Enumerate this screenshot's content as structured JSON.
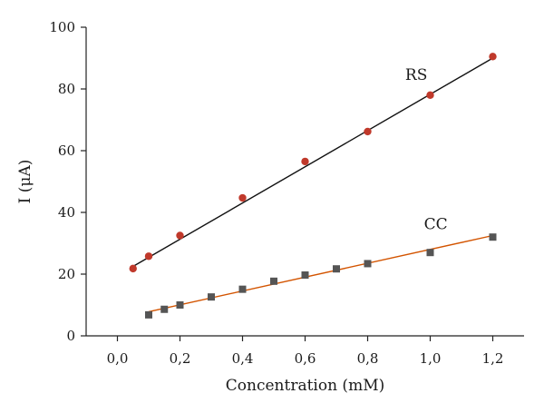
{
  "chart_data": {
    "type": "scatter",
    "xlabel": "Concentration (mM)",
    "ylabel": "I (μA)",
    "xlim": [
      -0.1,
      1.3
    ],
    "ylim": [
      0,
      100
    ],
    "x_ticks": [
      0.0,
      0.2,
      0.4,
      0.6,
      0.8,
      1.0,
      1.2
    ],
    "x_tick_labels": [
      "0,0",
      "0,2",
      "0,4",
      "0,6",
      "0,8",
      "1,0",
      "1,2"
    ],
    "y_ticks": [
      0,
      20,
      40,
      60,
      80,
      100
    ],
    "y_tick_labels": [
      "0",
      "20",
      "40",
      "60",
      "80",
      "100"
    ],
    "grid": false,
    "series": [
      {
        "name": "RS",
        "marker": "circle",
        "marker_color": "#c0392b",
        "fit_color": "#111111",
        "x": [
          0.05,
          0.1,
          0.2,
          0.4,
          0.6,
          0.8,
          1.0,
          1.2
        ],
        "y": [
          21.8,
          25.8,
          32.5,
          44.7,
          56.5,
          66.2,
          78.0,
          90.5
        ],
        "fit": {
          "x": [
            0.05,
            1.2
          ],
          "y": [
            22.5,
            90.0
          ]
        }
      },
      {
        "name": "CC",
        "marker": "square",
        "marker_color": "#555555",
        "fit_color": "#d35400",
        "x": [
          0.1,
          0.15,
          0.2,
          0.3,
          0.4,
          0.5,
          0.6,
          0.7,
          0.8,
          1.0,
          1.2
        ],
        "y": [
          6.8,
          8.6,
          10.0,
          12.6,
          15.1,
          17.7,
          19.7,
          21.7,
          23.4,
          27.0,
          32.0
        ],
        "fit": {
          "x": [
            0.1,
            1.2
          ],
          "y": [
            7.8,
            32.5
          ]
        }
      }
    ]
  }
}
